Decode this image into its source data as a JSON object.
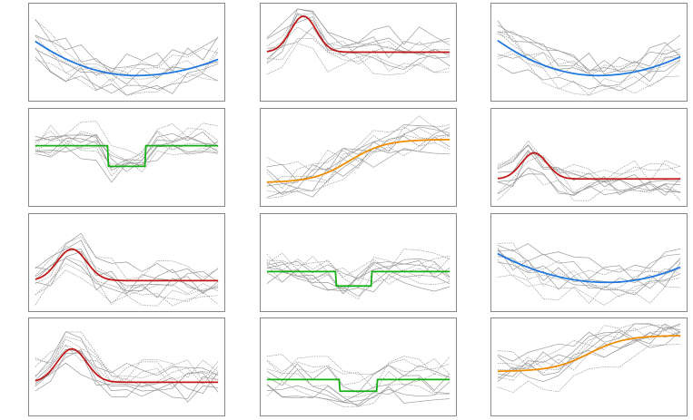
{
  "chart_data": [
    {
      "type": "line",
      "template": "parabola",
      "color": "#1f77e0",
      "start": 0.62,
      "min": 0.24,
      "min_x": 0.55,
      "end": 0.42,
      "traces": 10,
      "ylim": [
        0,
        1
      ]
    },
    {
      "type": "line",
      "template": "gaussian",
      "color": "#c01818",
      "baseline": 0.5,
      "peak": 0.9,
      "peak_x": 0.2,
      "width": 0.07,
      "traces": 10,
      "ylim": [
        0,
        1
      ]
    },
    {
      "type": "line",
      "template": "parabola",
      "color": "#1f77e0",
      "start": 0.63,
      "min": 0.24,
      "min_x": 0.55,
      "end": 0.45,
      "traces": 10,
      "ylim": [
        0,
        1
      ]
    },
    {
      "type": "line",
      "template": "step",
      "color": "#12b012",
      "level": 0.63,
      "low": 0.4,
      "step_start": 0.4,
      "step_end": 0.6,
      "traces": 10,
      "ylim": [
        0,
        1
      ]
    },
    {
      "type": "line",
      "template": "sigmoid",
      "color": "#f08c00",
      "from": 0.22,
      "to": 0.7,
      "center": 0.45,
      "traces": 10,
      "ylim": [
        0,
        1
      ]
    },
    {
      "type": "line",
      "template": "gaussian",
      "color": "#c01818",
      "baseline": 0.26,
      "peak": 0.55,
      "peak_x": 0.2,
      "width": 0.07,
      "traces": 10,
      "ylim": [
        0,
        1
      ]
    },
    {
      "type": "line",
      "template": "gaussian",
      "color": "#c01818",
      "baseline": 0.3,
      "peak": 0.65,
      "peak_x": 0.2,
      "width": 0.08,
      "traces": 10,
      "ylim": [
        0,
        1
      ]
    },
    {
      "type": "line",
      "template": "step",
      "color": "#12b012",
      "level": 0.4,
      "low": 0.24,
      "step_start": 0.38,
      "step_end": 0.57,
      "traces": 10,
      "ylim": [
        0,
        1
      ]
    },
    {
      "type": "line",
      "template": "parabola",
      "color": "#1f77e0",
      "start": 0.6,
      "min": 0.28,
      "min_x": 0.6,
      "end": 0.45,
      "traces": 10,
      "ylim": [
        0,
        1
      ]
    },
    {
      "type": "line",
      "template": "gaussian",
      "color": "#c01818",
      "baseline": 0.33,
      "peak": 0.7,
      "peak_x": 0.2,
      "width": 0.08,
      "traces": 10,
      "ylim": [
        0,
        1
      ]
    },
    {
      "type": "line",
      "template": "step",
      "color": "#12b012",
      "level": 0.36,
      "low": 0.23,
      "step_start": 0.4,
      "step_end": 0.6,
      "traces": 10,
      "ylim": [
        0,
        1
      ]
    },
    {
      "type": "line",
      "template": "sigmoid",
      "color": "#f08c00",
      "from": 0.45,
      "to": 0.85,
      "center": 0.5,
      "traces": 10,
      "ylim": [
        0,
        1
      ]
    }
  ]
}
